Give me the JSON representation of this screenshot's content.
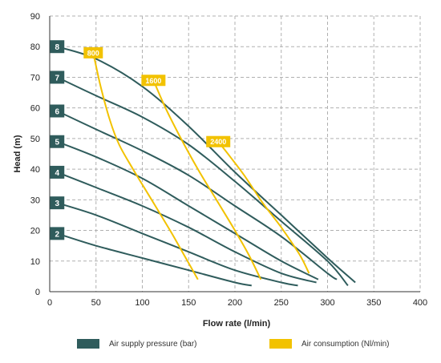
{
  "colors": {
    "pressure": "#2f5c5c",
    "consumption": "#f2c200",
    "grid": "#b0b0b0",
    "badge_text": "#ffffff"
  },
  "chart_data": {
    "type": "line",
    "xlabel": "Flow rate (l/min)",
    "ylabel": "Head (m)",
    "xlim": [
      0,
      400
    ],
    "ylim": [
      0,
      90
    ],
    "x_ticks": [
      "0",
      "50",
      "100",
      "150",
      "200",
      "250",
      "300",
      "350",
      "400"
    ],
    "y_ticks": [
      "0",
      "10",
      "20",
      "30",
      "40",
      "50",
      "60",
      "70",
      "80",
      "90"
    ],
    "grid": true,
    "grid_style": "dashed",
    "legend_position": "bottom",
    "legend": [
      {
        "label": "Air supply pressure (bar)",
        "kind": "pressure"
      },
      {
        "label": "Air consumption (Nl/min)",
        "kind": "consumption"
      }
    ],
    "pressure_curves": [
      {
        "label": "2",
        "x": [
          8,
          50,
          100,
          150,
          200,
          218
        ],
        "y": [
          19,
          15,
          11,
          7,
          3,
          2
        ]
      },
      {
        "label": "3",
        "x": [
          8,
          50,
          100,
          150,
          200,
          250,
          268
        ],
        "y": [
          29,
          25,
          19,
          13,
          7,
          3,
          2
        ]
      },
      {
        "label": "4",
        "x": [
          8,
          50,
          100,
          150,
          200,
          250,
          288
        ],
        "y": [
          39,
          34,
          28,
          21,
          13,
          6,
          3
        ]
      },
      {
        "label": "5",
        "x": [
          8,
          50,
          100,
          150,
          200,
          250,
          290
        ],
        "y": [
          49,
          44,
          37,
          28,
          19,
          10,
          4
        ]
      },
      {
        "label": "6",
        "x": [
          8,
          50,
          100,
          150,
          200,
          250,
          300,
          310
        ],
        "y": [
          59,
          53,
          46,
          38,
          28,
          18,
          6,
          4
        ]
      },
      {
        "label": "7",
        "x": [
          8,
          50,
          100,
          150,
          200,
          250,
          300,
          322
        ],
        "y": [
          70,
          64,
          57,
          48,
          36,
          23,
          10,
          2
        ]
      },
      {
        "label": "8",
        "x": [
          8,
          50,
          100,
          150,
          200,
          250,
          300,
          330
        ],
        "y": [
          80,
          76,
          67,
          54,
          39,
          25,
          11,
          3
        ]
      }
    ],
    "consumption_curves": [
      {
        "label": "800",
        "x": [
          47,
          55,
          65,
          75,
          90,
          110,
          130,
          145,
          160
        ],
        "y": [
          78,
          67,
          56,
          48,
          40,
          30,
          20,
          12,
          4
        ]
      },
      {
        "label": "1600",
        "x": [
          112,
          125,
          140,
          160,
          180,
          200,
          215,
          228
        ],
        "y": [
          69,
          60,
          51,
          40,
          30,
          20,
          12,
          4
        ]
      },
      {
        "label": "2400",
        "x": [
          182,
          195,
          210,
          230,
          250,
          270,
          280
        ],
        "y": [
          49,
          44,
          38,
          29,
          21,
          12,
          6
        ]
      }
    ]
  }
}
